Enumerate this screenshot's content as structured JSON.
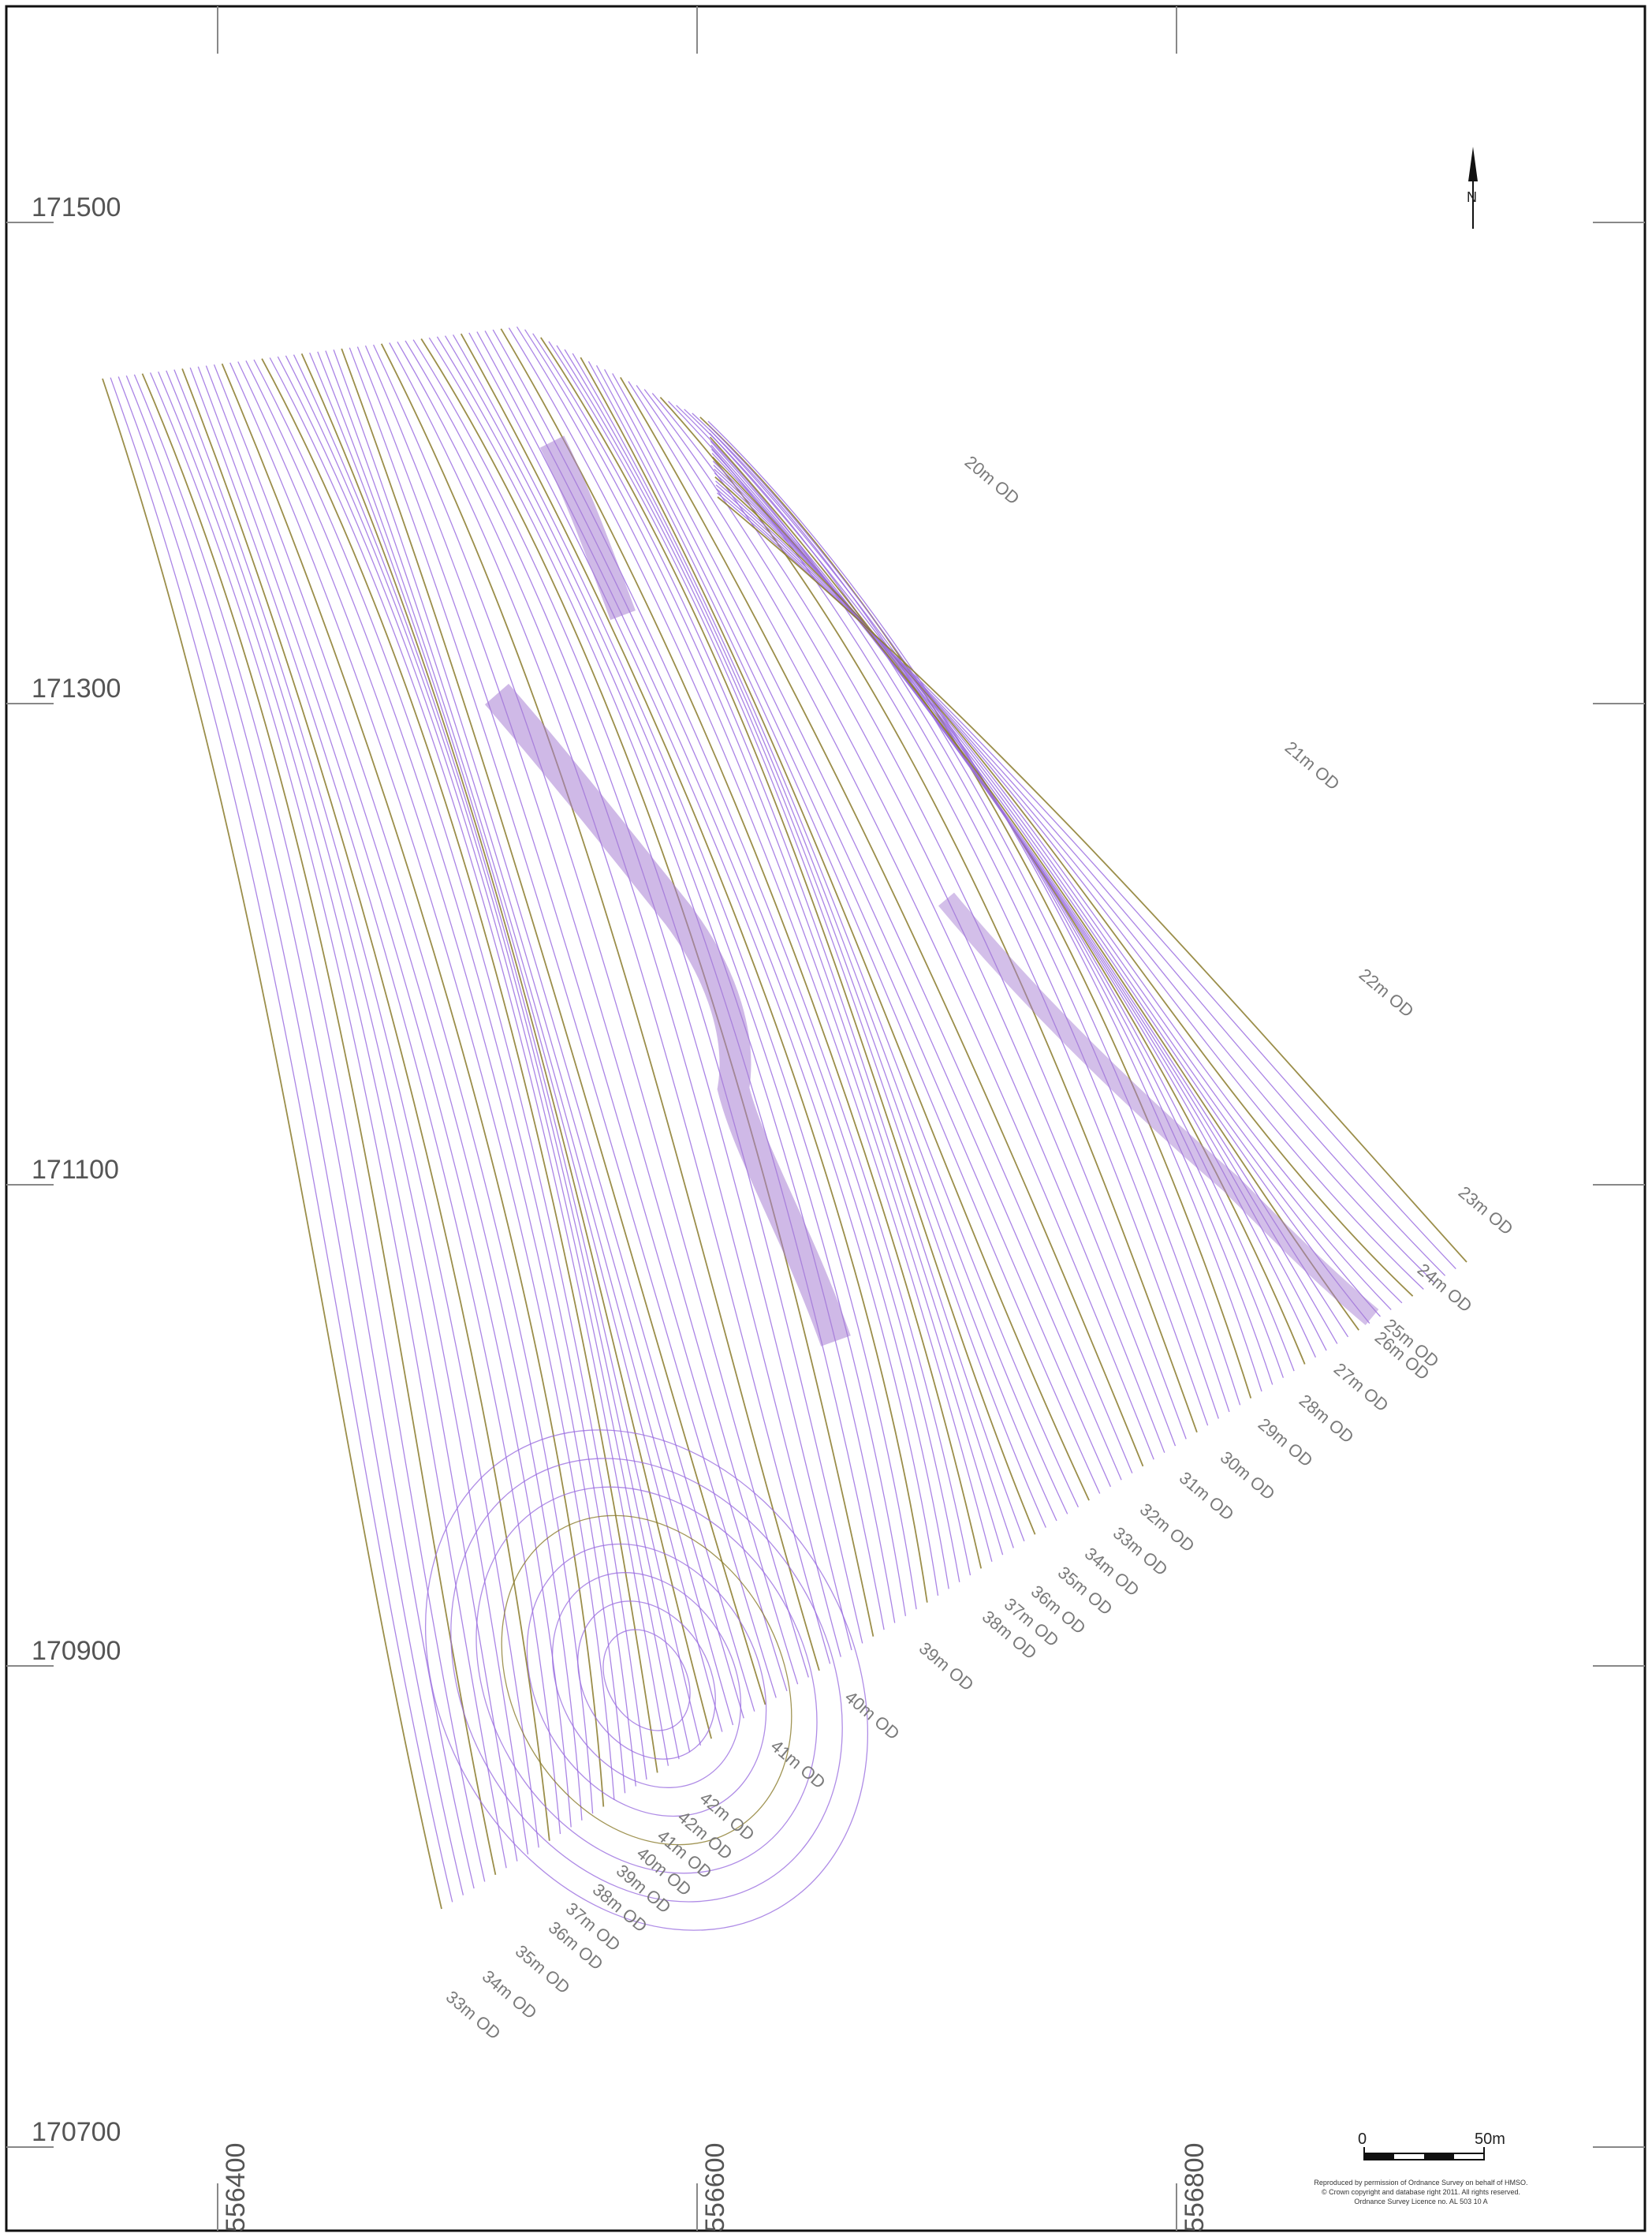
{
  "map": {
    "northings": [
      "171500",
      "171300",
      "171100",
      "170900",
      "170700"
    ],
    "eastings": [
      "556400",
      "556600",
      "556800"
    ],
    "north_label": "N",
    "scale": {
      "zero": "0",
      "end": "50m"
    },
    "copyright": {
      "line1": "Reproduced by permission of Ordnance Survey on behalf of HMSO.",
      "line2": "© Crown copyright and database right 2011. All rights reserved.",
      "line3": "Ordnance Survey Licence no. AL 503 10 A"
    },
    "colors": {
      "contour": "#9b6fe0",
      "index_contour": "#8a7a2a",
      "earthwork": "#a87fd4",
      "frame": "#111111"
    },
    "north_contour_labels": [
      "20m OD",
      "21m OD",
      "22m OD",
      "23m OD",
      "24m OD",
      "25m OD",
      "26m OD",
      "27m OD",
      "28m OD",
      "29m OD",
      "30m OD",
      "31m OD",
      "32m OD",
      "33m OD",
      "34m OD",
      "35m OD",
      "36m OD",
      "37m OD",
      "38m OD",
      "39m OD",
      "40m OD",
      "41m OD"
    ],
    "south_contour_labels": [
      "42m OD",
      "42m OD",
      "41m OD",
      "40m OD",
      "39m OD",
      "38m OD",
      "37m OD",
      "36m OD",
      "35m OD",
      "34m OD",
      "33m OD"
    ]
  }
}
